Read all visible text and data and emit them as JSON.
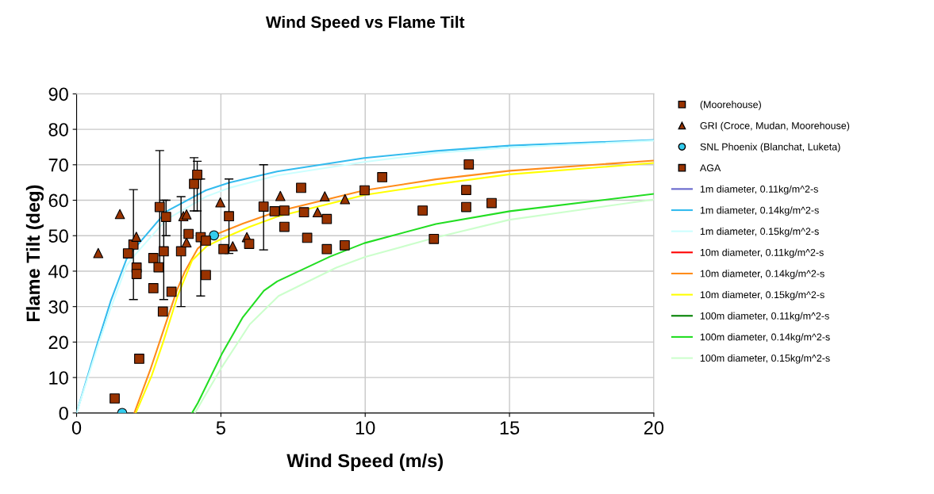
{
  "chart_data": {
    "type": "scatter",
    "title": "Wind Speed vs Flame Tilt",
    "xlabel": "Wind Speed (m/s)",
    "ylabel": "Flame Tilt (deg)",
    "xlim": [
      0,
      20
    ],
    "xticks": [
      0,
      5,
      10,
      15,
      20
    ],
    "ylim": [
      0,
      90
    ],
    "yticks": [
      0,
      10,
      20,
      30,
      40,
      50,
      60,
      70,
      80,
      90
    ],
    "grid": true,
    "legend": "right",
    "series": [
      {
        "name": "(Moorehouse)",
        "marker": "square",
        "color": "#993300",
        "x": [
          1.97,
          2.88,
          3.02,
          3.1,
          3.62,
          4.07,
          4.18,
          4.3,
          5.28,
          6.48
        ],
        "values": [
          47.5,
          58.1,
          45.6,
          55.3,
          45.6,
          64.6,
          67.2,
          49.6,
          55.5,
          58.2
        ],
        "errors": [
          [
            32,
            63
          ],
          [
            42,
            74
          ],
          [
            32,
            60
          ],
          [
            50,
            60
          ],
          [
            30,
            61
          ],
          [
            57,
            72
          ],
          [
            57,
            71
          ],
          [
            33,
            66
          ],
          [
            45,
            66
          ],
          [
            46,
            70
          ]
        ]
      },
      {
        "name": "GRI (Croce, Mudan, Moorehouse)",
        "marker": "triangle",
        "color": "#993300",
        "x": [
          0.75,
          1.5,
          2.07,
          3.7,
          3.81,
          3.81,
          4.98,
          5.41,
          5.9,
          7.06,
          8.35,
          8.6,
          9.3
        ],
        "values": [
          45.1,
          56.1,
          49.7,
          55.5,
          56.0,
          48.1,
          59.4,
          47.0,
          49.6,
          61.2,
          56.6,
          61.1,
          60.3
        ]
      },
      {
        "name": "SNL Phoenix (Blanchat, Luketa)",
        "marker": "circle",
        "color": "#33ccee",
        "x": [
          1.58,
          4.76
        ],
        "values": [
          0,
          50.1
        ]
      },
      {
        "name": "AGA",
        "marker": "square",
        "color": "#993300",
        "x": [
          1.32,
          2.17,
          1.78,
          2.08,
          2.08,
          2.66,
          2.66,
          2.84,
          2.99,
          3.29,
          3.88,
          4.48,
          4.48,
          5.09,
          5.98,
          6.86,
          7.2,
          7.2,
          7.78,
          7.88,
          7.99,
          8.67,
          8.67,
          9.29,
          9.98,
          10.59,
          11.99,
          12.38,
          13.59,
          13.5,
          13.5,
          14.38
        ],
        "values": [
          4.1,
          15.3,
          45.0,
          41.0,
          39.2,
          43.7,
          35.2,
          41.1,
          28.6,
          34.2,
          50.5,
          48.6,
          38.9,
          46.2,
          47.7,
          56.9,
          57.1,
          52.5,
          63.5,
          56.6,
          49.4,
          54.7,
          46.2,
          47.3,
          62.8,
          66.5,
          57.1,
          49.1,
          70.1,
          62.9,
          58.1,
          59.2
        ]
      },
      {
        "name": "1m diameter, 0.11kg/m^2-s",
        "type": "line",
        "color": "#6666cc"
      },
      {
        "name": "1m diameter, 0.14kg/m^2-s",
        "type": "line",
        "color": "#33bbee",
        "x": [
          0,
          0.72,
          1.18,
          1.73,
          2.01,
          3.1,
          4.48,
          5.3,
          6.95,
          9.97,
          12.45,
          15.01,
          20
        ],
        "values": [
          0,
          19.6,
          31.5,
          43.4,
          46.4,
          56.8,
          62.8,
          65.0,
          68.1,
          71.9,
          73.9,
          75.4,
          77.0
        ]
      },
      {
        "name": "1m diameter, 0.15kg/m^2-s",
        "type": "line",
        "color": "#ccffff",
        "x": [
          0,
          0.72,
          1.18,
          1.73,
          2.01,
          3.1,
          4.48,
          5.3,
          6.95,
          9.97,
          12.45,
          15.01,
          20
        ],
        "values": [
          0,
          18.5,
          29.5,
          41.5,
          44.5,
          54.5,
          61.0,
          63.5,
          67.0,
          70.8,
          73.3,
          74.9,
          76.8
        ]
      },
      {
        "name": "10m diameter, 0.11kg/m^2-s",
        "type": "line",
        "color": "#ff0000"
      },
      {
        "name": "10m diameter, 0.14kg/m^2-s",
        "type": "line",
        "color": "#ff8c1a",
        "x": [
          2.0,
          2.55,
          3.01,
          3.47,
          3.74,
          4.2,
          4.75,
          5.76,
          6.95,
          9.97,
          12.45,
          15.01,
          20
        ],
        "values": [
          0,
          12.1,
          23.3,
          34.5,
          39.7,
          46.4,
          50.1,
          53.4,
          56.8,
          62.8,
          65.9,
          68.3,
          71.2
        ]
      },
      {
        "name": "10m diameter, 0.15kg/m^2-s",
        "type": "line",
        "color": "#ffff00",
        "x": [
          2.05,
          2.6,
          3.0,
          3.5,
          4.0,
          4.5,
          5.0,
          6.0,
          7.0,
          10.0,
          12.45,
          15.0,
          20
        ],
        "values": [
          0,
          10.5,
          20.0,
          33.0,
          43.0,
          47.0,
          49.0,
          52.5,
          55.5,
          61.5,
          64.5,
          67.3,
          70.5
        ]
      },
      {
        "name": "100m diameter, 0.11kg/m^2-s",
        "type": "line",
        "color": "#008000"
      },
      {
        "name": "100m diameter, 0.14kg/m^2-s",
        "type": "line",
        "color": "#22dd22",
        "x": [
          4.0,
          4.2,
          5.03,
          5.76,
          6.49,
          6.95,
          8.78,
          9.97,
          12.45,
          15.01,
          20
        ],
        "values": [
          0,
          2.8,
          16.6,
          27.0,
          34.5,
          37.1,
          44.1,
          47.9,
          53.3,
          56.9,
          61.8
        ]
      },
      {
        "name": "100m diameter, 0.15kg/m^2-s",
        "type": "line",
        "color": "#ccffcc",
        "x": [
          4.1,
          5.0,
          6.0,
          7.0,
          9.0,
          10.0,
          12.45,
          15.0,
          20
        ],
        "values": [
          0,
          12.5,
          25.0,
          33.0,
          41.0,
          44.0,
          49.5,
          54.5,
          60.2
        ]
      }
    ]
  }
}
